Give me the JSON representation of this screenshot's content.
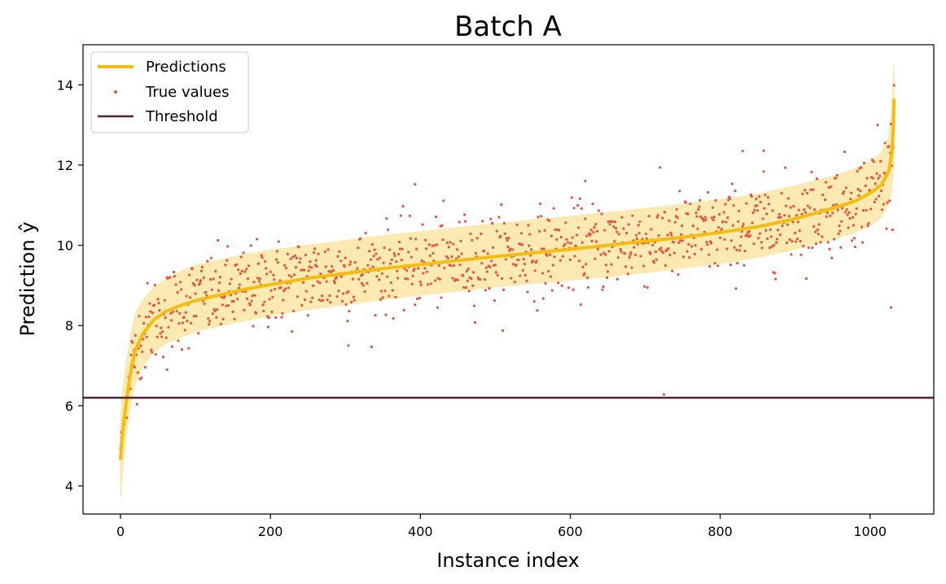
{
  "chart_data": {
    "type": "line",
    "title": "Batch A",
    "xlabel": "Instance index",
    "ylabel": "Prediction  ŷ",
    "xlim": [
      -50,
      1085
    ],
    "ylim": [
      3.3,
      15.0
    ],
    "xticks": [
      0,
      200,
      400,
      600,
      800,
      1000
    ],
    "yticks": [
      4,
      6,
      8,
      10,
      12,
      14
    ],
    "grid": false,
    "legend_position": "top-left",
    "n_points": 1033,
    "series": [
      {
        "name": "Predictions",
        "kind": "line",
        "color": "#f5bd0f",
        "band_color": "#fbe6a4",
        "note_shape": "sorted predictions with uncertainty band",
        "x": [
          0,
          2,
          5,
          10,
          15,
          20,
          30,
          45,
          60,
          80,
          100,
          130,
          160,
          200,
          250,
          300,
          350,
          400,
          450,
          500,
          550,
          600,
          650,
          700,
          750,
          800,
          850,
          900,
          950,
          980,
          1000,
          1015,
          1025,
          1029,
          1031,
          1032
        ],
        "values": [
          4.65,
          5.2,
          5.7,
          6.4,
          7.0,
          7.4,
          7.8,
          8.15,
          8.35,
          8.5,
          8.62,
          8.75,
          8.88,
          9.02,
          9.18,
          9.3,
          9.42,
          9.52,
          9.62,
          9.72,
          9.81,
          9.9,
          10.0,
          10.1,
          10.2,
          10.32,
          10.46,
          10.66,
          10.92,
          11.1,
          11.3,
          11.5,
          11.85,
          12.3,
          12.9,
          13.65
        ],
        "band_lower": [
          3.75,
          4.2,
          4.8,
          5.6,
          6.2,
          6.6,
          7.0,
          7.35,
          7.55,
          7.7,
          7.85,
          7.98,
          8.1,
          8.25,
          8.4,
          8.52,
          8.65,
          8.76,
          8.86,
          8.96,
          9.05,
          9.13,
          9.22,
          9.32,
          9.43,
          9.55,
          9.7,
          9.9,
          10.15,
          10.32,
          10.5,
          10.7,
          11.05,
          11.4,
          11.9,
          12.2
        ],
        "band_upper": [
          5.6,
          6.2,
          6.7,
          7.3,
          7.9,
          8.3,
          8.65,
          8.95,
          9.15,
          9.35,
          9.5,
          9.62,
          9.75,
          9.88,
          10.0,
          10.12,
          10.24,
          10.34,
          10.44,
          10.54,
          10.63,
          10.72,
          10.82,
          10.92,
          11.02,
          11.14,
          11.28,
          11.48,
          11.72,
          11.9,
          12.1,
          12.3,
          12.7,
          13.4,
          14.1,
          14.5
        ]
      },
      {
        "name": "True values",
        "kind": "scatter",
        "color": "#e8553a",
        "spread_sd": 0.55,
        "outliers": [
          [
            725,
            6.28
          ],
          [
            304,
            7.5
          ],
          [
            62,
            6.9
          ],
          [
            1028,
            8.45
          ],
          [
            393,
            11.52
          ],
          [
            620,
            11.6
          ],
          [
            830,
            12.35
          ],
          [
            858,
            12.36
          ],
          [
            1010,
            13.0
          ]
        ]
      },
      {
        "name": "Threshold",
        "kind": "hline",
        "color": "#4e2338",
        "value": 6.2
      }
    ]
  }
}
